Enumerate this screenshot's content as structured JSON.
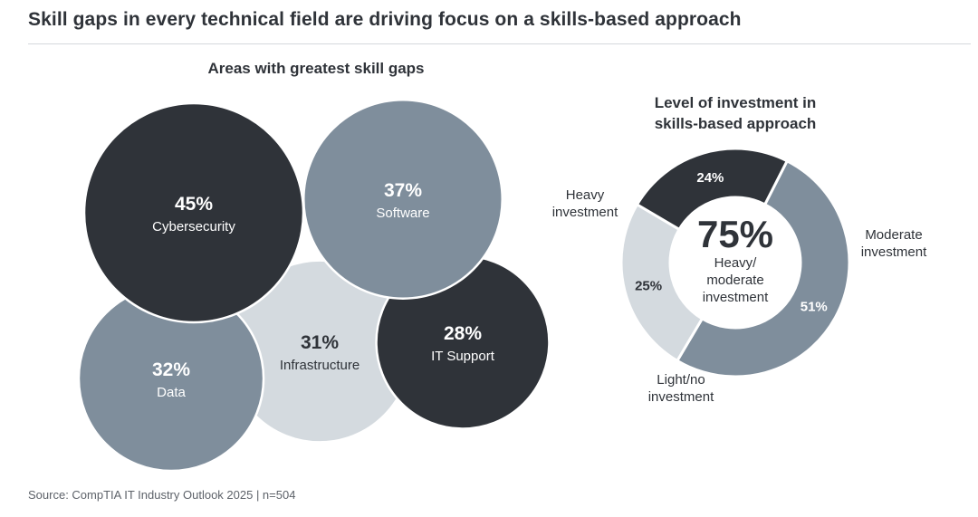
{
  "title": "Skill gaps in every technical field are driving focus on a skills-based approach",
  "source": "Source: CompTIA IT Industry Outlook 2025 | n=504",
  "colors": {
    "dark": "#2f3339",
    "medium": "#7f8e9c",
    "light": "#d4dadf",
    "text_dark": "#2f3339",
    "text_light": "#ffffff",
    "background": "#ffffff"
  },
  "chart_data": [
    {
      "type": "bubble",
      "title": "Areas with greatest skill gaps",
      "categories": [
        "Cybersecurity",
        "Software",
        "Data",
        "Infrastructure",
        "IT Support"
      ],
      "values": [
        45,
        37,
        32,
        31,
        28
      ],
      "value_labels": [
        "45%",
        "37%",
        "32%",
        "31%",
        "28%"
      ],
      "fills": [
        "dark",
        "medium",
        "medium",
        "light",
        "dark"
      ],
      "unit": "%"
    },
    {
      "type": "pie",
      "title_lines": [
        "Level of investment in",
        "skills-based approach"
      ],
      "categories": [
        "Moderate investment",
        "Light/no investment",
        "Heavy investment"
      ],
      "label_lines": [
        [
          "Moderate",
          "investment"
        ],
        [
          "Light/no",
          "investment"
        ],
        [
          "Heavy",
          "investment"
        ]
      ],
      "values": [
        51,
        25,
        24
      ],
      "value_labels": [
        "51%",
        "25%",
        "24%"
      ],
      "fills": [
        "medium",
        "light",
        "dark"
      ],
      "center_value": "75%",
      "center_label_lines": [
        "Heavy/",
        "moderate",
        "investment"
      ],
      "unit": "%"
    }
  ]
}
